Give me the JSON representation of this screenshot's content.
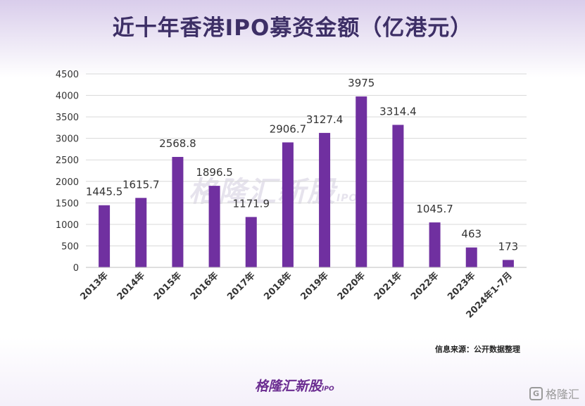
{
  "source_note": "信息来源：公开数据整理",
  "brand": {
    "name": "格隆汇新股",
    "sub": "IPO",
    "corner": "格隆汇",
    "corner_icon_glyph": "G"
  },
  "colors": {
    "bar": "#7030a0",
    "title": "#3d2f66",
    "grid": "#d9d9d9"
  },
  "chart_data": {
    "type": "bar",
    "title": "近十年香港IPO募资金额（亿港元）",
    "categories": [
      "2013年",
      "2014年",
      "2015年",
      "2016年",
      "2017年",
      "2018年",
      "2019年",
      "2020年",
      "2021年",
      "2022年",
      "2023年",
      "2024年1-7月"
    ],
    "values": [
      1445.5,
      1615.7,
      2568.8,
      1896.5,
      1171.9,
      2906.7,
      3127.4,
      3975,
      3314.4,
      1045.7,
      463,
      173
    ],
    "ylim": [
      0,
      4500
    ],
    "yticks": [
      0,
      500,
      1000,
      1500,
      2000,
      2500,
      3000,
      3500,
      4000,
      4500
    ],
    "grid": true,
    "legend": "none"
  }
}
